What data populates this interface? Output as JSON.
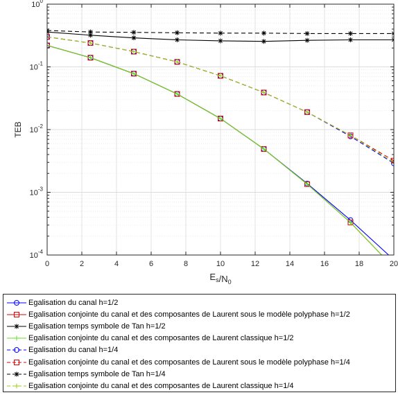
{
  "chart_data": {
    "type": "line",
    "xlabel": "E_s/N_0",
    "ylabel": "TEB",
    "xlim": [
      0,
      20
    ],
    "ylim": [
      0.0001,
      1
    ],
    "yscale": "log",
    "grid": true,
    "legend_position": "bottom-outside",
    "x_ticks": [
      "0",
      "2",
      "4",
      "6",
      "8",
      "10",
      "12",
      "14",
      "16",
      "18",
      "20"
    ],
    "y_ticks": [
      {
        "base": "10",
        "exp": "0"
      },
      {
        "base": "10",
        "exp": "-1"
      },
      {
        "base": "10",
        "exp": "-2"
      },
      {
        "base": "10",
        "exp": "-3"
      },
      {
        "base": "10",
        "exp": "-4"
      }
    ],
    "x": [
      0,
      2.5,
      5,
      7.5,
      10,
      12.5,
      15,
      17.5,
      20
    ],
    "series": [
      {
        "name": "Egalisation du canal h=1/2",
        "color": "#0000ff",
        "marker": "circle",
        "dash": "solid",
        "x": [
          0,
          2.5,
          5,
          7.5,
          10,
          12.5,
          15,
          17.5,
          19.7
        ],
        "values": [
          0.22,
          0.14,
          0.078,
          0.037,
          0.015,
          0.0049,
          0.00138,
          0.00036,
          0.0001
        ]
      },
      {
        "name": "Egalisation conjointe du canal et des composantes de Laurent sous le modèle polyphase h=1/2",
        "color": "#e00000",
        "marker": "square",
        "dash": "solid",
        "x": [
          0,
          2.5,
          5,
          7.5,
          10,
          12.5,
          15,
          17.5,
          19.3
        ],
        "values": [
          0.22,
          0.14,
          0.078,
          0.037,
          0.015,
          0.0049,
          0.00135,
          0.00033,
          0.0001
        ]
      },
      {
        "name": "Egalisation temps symbole de Tan h=1/2",
        "color": "#000000",
        "marker": "star",
        "dash": "solid",
        "x": [
          0,
          2.5,
          5,
          7.5,
          10,
          12.5,
          15,
          17.5,
          20
        ],
        "values": [
          0.36,
          0.32,
          0.29,
          0.27,
          0.26,
          0.255,
          0.265,
          0.27,
          0.27
        ]
      },
      {
        "name": "Egalisation conjointe du canal et des composantes de Laurent classique h=1/2",
        "color": "#66dd22",
        "marker": "plus",
        "dash": "solid",
        "x": [
          0,
          2.5,
          5,
          7.5,
          10,
          12.5,
          15,
          17.5,
          19.3
        ],
        "values": [
          0.22,
          0.14,
          0.078,
          0.037,
          0.015,
          0.0049,
          0.00135,
          0.00033,
          0.0001
        ]
      },
      {
        "name": "Egalisation du canal h=1/4",
        "color": "#0000ff",
        "marker": "circle",
        "dash": "dashed",
        "x": [
          0,
          2.5,
          5,
          7.5,
          10,
          12.5,
          15,
          17.5,
          20
        ],
        "values": [
          0.3,
          0.24,
          0.175,
          0.12,
          0.072,
          0.039,
          0.019,
          0.0078,
          0.0029
        ]
      },
      {
        "name": "Egalisation conjointe du canal et des composantes de Laurent sous le modèle polyphase h=1/4",
        "color": "#e00000",
        "marker": "square",
        "dash": "dashed",
        "x": [
          0,
          2.5,
          5,
          7.5,
          10,
          12.5,
          15,
          17.5,
          20
        ],
        "values": [
          0.3,
          0.24,
          0.175,
          0.12,
          0.072,
          0.039,
          0.019,
          0.0081,
          0.0032
        ]
      },
      {
        "name": "Egalisation temps symbole de Tan h=1/4",
        "color": "#000000",
        "marker": "star",
        "dash": "dashed",
        "x": [
          0,
          2.5,
          5,
          7.5,
          10,
          12.5,
          15,
          17.5,
          20
        ],
        "values": [
          0.38,
          0.36,
          0.355,
          0.35,
          0.345,
          0.345,
          0.34,
          0.34,
          0.34
        ]
      },
      {
        "name": "Egalisation conjointe du canal et des composantes de Laurent classique h=1/4",
        "color": "#99cc11",
        "marker": "plus",
        "dash": "dashed",
        "x": [
          0,
          2.5,
          5,
          7.5,
          10,
          12.5,
          15,
          17.5,
          20
        ],
        "values": [
          0.3,
          0.24,
          0.175,
          0.12,
          0.072,
          0.039,
          0.019,
          0.0081,
          0.003
        ]
      }
    ]
  }
}
